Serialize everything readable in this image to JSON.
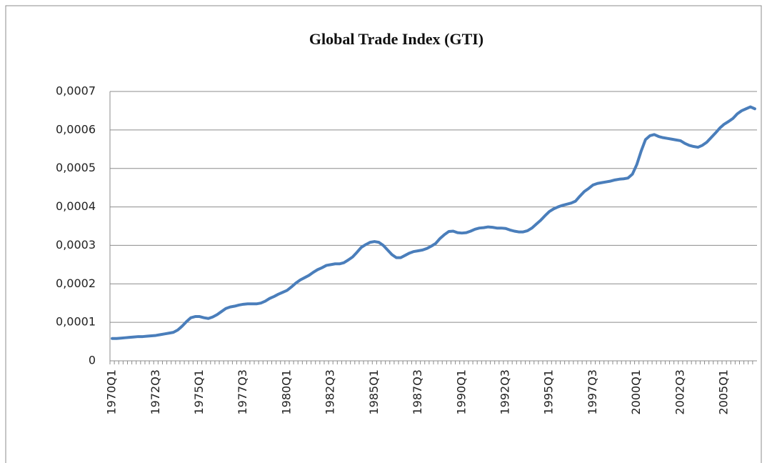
{
  "chart_data": {
    "type": "line",
    "title": "Global Trade Index (GTI)",
    "categories": [
      "1970Q1",
      null,
      null,
      null,
      null,
      null,
      null,
      null,
      null,
      null,
      "1972Q3",
      null,
      null,
      null,
      null,
      null,
      null,
      null,
      null,
      null,
      "1975Q1",
      null,
      null,
      null,
      null,
      null,
      null,
      null,
      null,
      null,
      "1977Q3",
      null,
      null,
      null,
      null,
      null,
      null,
      null,
      null,
      null,
      "1980Q1",
      null,
      null,
      null,
      null,
      null,
      null,
      null,
      null,
      null,
      "1982Q3",
      null,
      null,
      null,
      null,
      null,
      null,
      null,
      null,
      null,
      "1985Q1",
      null,
      null,
      null,
      null,
      null,
      null,
      null,
      null,
      null,
      "1987Q3",
      null,
      null,
      null,
      null,
      null,
      null,
      null,
      null,
      null,
      "1990Q1",
      null,
      null,
      null,
      null,
      null,
      null,
      null,
      null,
      null,
      "1992Q3",
      null,
      null,
      null,
      null,
      null,
      null,
      null,
      null,
      null,
      "1995Q1",
      null,
      null,
      null,
      null,
      null,
      null,
      null,
      null,
      null,
      "1997Q3",
      null,
      null,
      null,
      null,
      null,
      null,
      null,
      null,
      null,
      "2000Q1",
      null,
      null,
      null,
      null,
      null,
      null,
      null,
      null,
      null,
      "2002Q3",
      null,
      null,
      null,
      null,
      null,
      null,
      null,
      null,
      null,
      "2005Q1",
      null,
      null,
      null,
      null,
      null,
      null,
      null
    ],
    "values": [
      5.8e-05,
      5.8e-05,
      5.9e-05,
      6e-05,
      6.1e-05,
      6.2e-05,
      6.3e-05,
      6.3e-05,
      6.4e-05,
      6.5e-05,
      6.6e-05,
      6.8e-05,
      7e-05,
      7.2e-05,
      7.4e-05,
      8e-05,
      9e-05,
      0.000102,
      0.000112,
      0.000115,
      0.000115,
      0.000112,
      0.00011,
      0.000114,
      0.00012,
      0.000128,
      0.000136,
      0.00014,
      0.000142,
      0.000145,
      0.000147,
      0.000148,
      0.000148,
      0.000148,
      0.00015,
      0.000155,
      0.000162,
      0.000167,
      0.000173,
      0.000178,
      0.000183,
      0.000192,
      0.000202,
      0.00021,
      0.000216,
      0.000222,
      0.00023,
      0.000237,
      0.000242,
      0.000248,
      0.00025,
      0.000252,
      0.000252,
      0.000255,
      0.000262,
      0.00027,
      0.000282,
      0.000295,
      0.000302,
      0.000308,
      0.00031,
      0.000308,
      0.0003,
      0.000288,
      0.000276,
      0.000268,
      0.000268,
      0.000274,
      0.00028,
      0.000284,
      0.000286,
      0.000288,
      0.000292,
      0.000298,
      0.000305,
      0.000318,
      0.000328,
      0.000336,
      0.000337,
      0.000333,
      0.000332,
      0.000333,
      0.000337,
      0.000342,
      0.000345,
      0.000346,
      0.000348,
      0.000347,
      0.000345,
      0.000345,
      0.000344,
      0.00034,
      0.000337,
      0.000335,
      0.000335,
      0.000338,
      0.000345,
      0.000355,
      0.000365,
      0.000377,
      0.000388,
      0.000395,
      0.0004,
      0.000404,
      0.000407,
      0.00041,
      0.000415,
      0.000428,
      0.00044,
      0.000448,
      0.000457,
      0.000461,
      0.000463,
      0.000465,
      0.000467,
      0.00047,
      0.000472,
      0.000473,
      0.000475,
      0.000485,
      0.00051,
      0.000545,
      0.000575,
      0.000585,
      0.000588,
      0.000583,
      0.00058,
      0.000578,
      0.000576,
      0.000574,
      0.000572,
      0.000565,
      0.00056,
      0.000557,
      0.000555,
      0.00056,
      0.000568,
      0.00058,
      0.000592,
      0.000605,
      0.000615,
      0.000622,
      0.00063,
      0.000642,
      0.00065,
      0.000655,
      0.00066,
      0.000655
    ],
    "color": "#4a7ebb",
    "ylim": [
      0,
      0.0007
    ],
    "yticks": [
      0,
      {
        "value": 0.0001,
        "label": "0,0001"
      },
      {
        "value": 0.0002,
        "label": "0,0002"
      },
      {
        "value": 0.0003,
        "label": "0,0003"
      },
      {
        "value": 0.0004,
        "label": "0,0004"
      },
      {
        "value": 0.0005,
        "label": "0,0005"
      },
      {
        "value": 0.0006,
        "label": "0,0006"
      },
      {
        "value": 0.0007,
        "label": "0,0007"
      }
    ],
    "grid": true
  }
}
